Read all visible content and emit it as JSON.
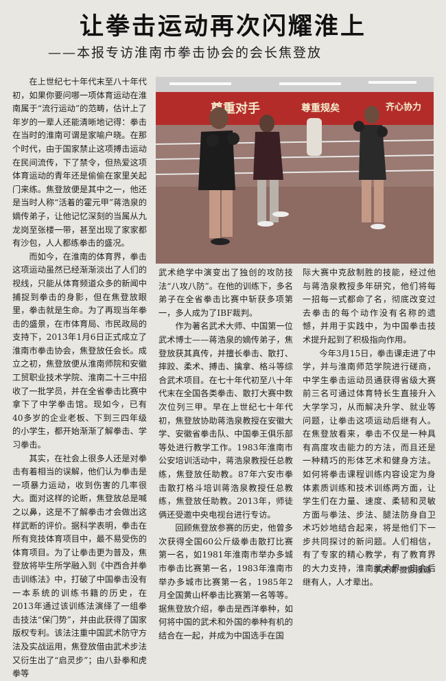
{
  "article": {
    "title": "让拳击运动再次闪耀淮上",
    "subtitle": "——本报专访淮南市拳击协会的会长焦登放",
    "photo_banners": [
      "尊重对手",
      "尊重规矣",
      "齐心协力"
    ],
    "col1": [
      "在上世纪七十年代末至八十年代初，如果你要问哪一项体育运动在淮南属于“流行运动”的范畴，估计上了年岁的一辈人还能清晰地记得：拳击在当时的淮南可谓是家喻户晓。在那个时代，由于国家禁止这项搏击运动在民间流传，下了禁令，但热爱这项体育运动的青年还是偷偷在家里关起门来练。焦登放便是其中之一，他还是当时人称“活着的霍元甲”蒋浩泉的嫡传弟子，让他记忆深刻的当属从九龙岗至张楼一带，甚至出现了家家都有沙包，人人都练拳击的盛况。",
      "而如今，在淮南的体育界，拳击这项运动虽然已经渐渐淡出了人们的视线，只能从体育频道众多的新闻中捕捉到拳击的身影，但在焦登放眼里，拳击就是生命。为了再现当年拳击的盛景，在市体育局、市民政局的支持下，2013年1月6日正式成立了淮南市拳击协会，焦登放任会长。成立之初，焦登放便从淮南师院和安徽工贸职业技术学院、淮南二十三中招收了一批学员，并在全省拳击比赛中拿下了中学拳击馆。现如今，已有40多岁的企业老板、下到三四年级的小学生，都开始渐渐了解拳击、学习拳击。",
      "其实，在社会上很多人还是对拳击有着相当的误解，他们认为拳击是一项暴力运动，收到伤害的几率很大。面对这样的论断，焦登放总是喊之以鼻，这是不了解拳击才会做出这样武断的评价。据科学表明，拳击在所有竞技体育项目中，最不易受伤的体育项目。为了让拳击更为普及，焦登放将毕生所学融入到《中西合并拳击训练法》中，打破了中国拳击没有一本系统的训练书籍的历史，在2013年通过该训练法演绎了一组拳击技法“保门势”，并由此获得了国家版权专利。该法注重中国武术防守方法及实战运用，焦登放借由武术步法又衍生出了“启灵步”；由八卦拳和虎拳等"
    ],
    "col2": [
      "武术绝学中演变出了独创的攻防技法“八攻八防”。在他的训练下，多名弟子在全省拳击比赛中斩获多项第一，多人成为了IBF裁判。",
      "作为著名武术大师、中国第一位武术博士——蒋浩泉的嫡传弟子，焦登放获其真传，并擅长拳击、散打、摔跤、柔术、搏击、擒拿、格斗等综合武术项目。在七十年代初至八十年代末在全国各类拳击、散打大赛中数次位列三甲。早在上世纪七十年代初，焦登放协助蒋浩泉教授在安徽大学、安徽省拳击队、中国拳王俱乐部等处进行教学工作。1983年淮南市公安培训活动中，蒋浩泉教授任总教练，焦登放任助教。87年六安市拳击散打格斗培训蒋浩泉教授任总教练，焦登放任助教。2013年，师徒俩还受邀中央电视台进行专访。",
      "回顾焦登放参赛的历史，他曾多次获得全国60公斤级拳击散打比赛第一名，如1981年淮南市举办多城市拳击比赛第一名，1983年淮南市举办多城市比赛第一名，1985年2月全国黄山杯拳击比赛第一名等等。据焦登放介绍，拳击是西洋拳种，如何将中国的武术和外国的拳种有机的结合在一起，并成为中国选手在国"
    ],
    "col3": [
      "际大赛中克敌制胜的技能，经过他与蒋浩泉教授多年研究，他们将每一招每一式都命了名，彻底改变过去拳击的每个动作没有名称的遗憾，并用于实践中，为中国拳击技术提升起到了积极指向作用。",
      "今年3月15日，拳击课走进了中学，并与淮南师范学院进行磋商，中学生拳击运动员通获得省级大赛前三名可通过体育特长生直接升入大学学习，从而解决升学、就业等问题，让拳击这项运动后继有人。在焦登放看来，拳击不仅是一种具有高度攻击能力的方法，而且还是一种精巧的形体艺术和健身方法。如何将拳击课程训练内容设定为身体素质训练和技术训练两方面，让学生们在力量、速度、柔韧和灵敏方面与拳法、步法、腿法防身自卫术巧妙地结合起来，将是他们下一步共同探讨的新问题。人们相信，有了专家的精心教学，有了教育界的大力支持，淮南武术界一定会后继有人，人才辈出。"
    ],
    "byline": "李庆南  摄影报道"
  }
}
